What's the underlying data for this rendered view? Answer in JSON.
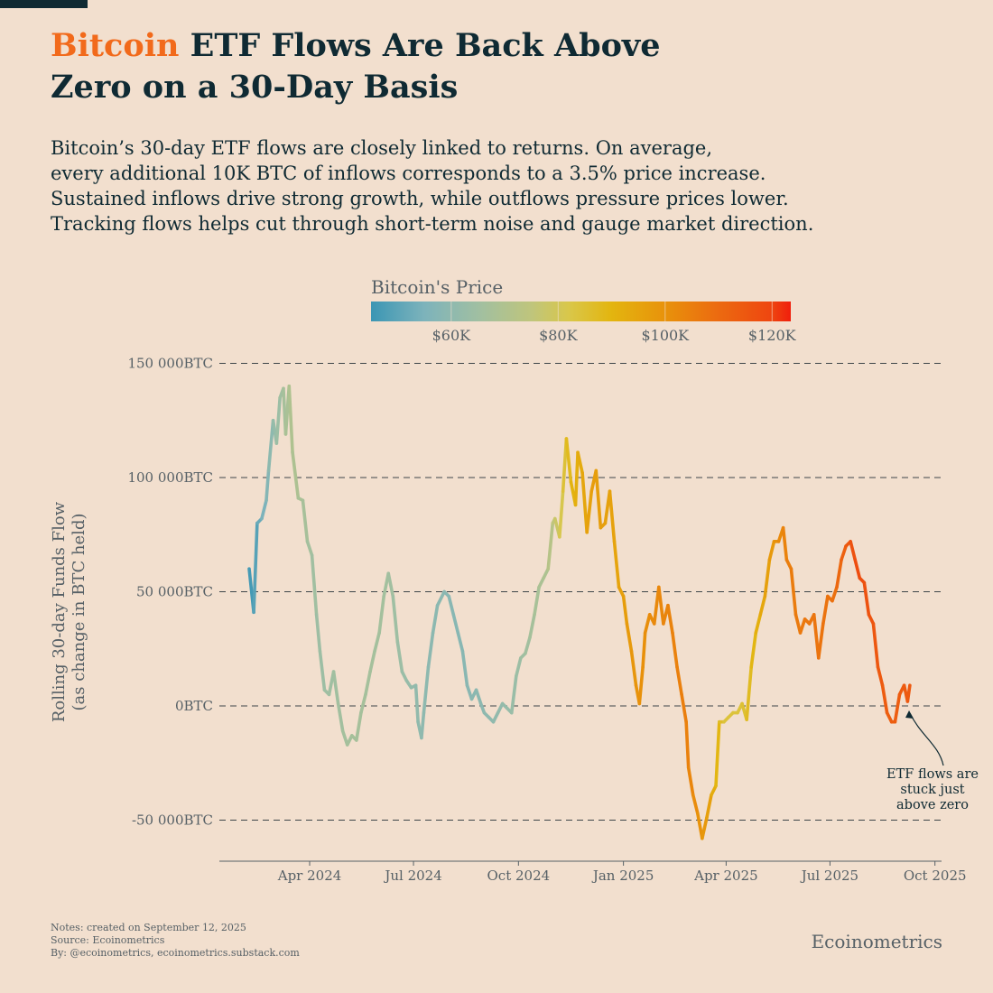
{
  "title": {
    "highlight": "Bitcoin",
    "rest_line1": " ETF Flows Are Back Above",
    "line2": "Zero on a 30-Day Basis"
  },
  "subtitle": [
    "Bitcoin’s 30-day ETF flows are closely linked to returns. On average,",
    "every additional 10K BTC of inflows corresponds to a 3.5% price increase.",
    "Sustained inflows drive strong growth, while outflows pressure prices lower.",
    "Tracking flows helps cut through short-term noise and gauge market direction."
  ],
  "colors": {
    "accent": "#f26a1b",
    "ink": "#0f2a33",
    "background": "#f2dfce"
  },
  "chart_data": {
    "type": "line",
    "title": "Bitcoin ETF Flows Are Back Above Zero on a 30-Day Basis",
    "ylabel_line1": "Rolling 30-day Funds Flow",
    "ylabel_line2": "(as change in BTC held)",
    "x_unit": "days since 2024-01-01",
    "y_unit": "thousand BTC",
    "ylim": [
      -60,
      150
    ],
    "y_ticks": [
      {
        "v": 150,
        "label": "150 000BTC"
      },
      {
        "v": 100,
        "label": "100 000BTC"
      },
      {
        "v": 50,
        "label": "50 000BTC"
      },
      {
        "v": 0,
        "label": "0BTC"
      },
      {
        "v": -50,
        "label": "-50 000BTC"
      }
    ],
    "x_ticks": [
      {
        "d": 91,
        "label": "Apr 2024"
      },
      {
        "d": 182,
        "label": "Jul 2024"
      },
      {
        "d": 274,
        "label": "Oct 2024"
      },
      {
        "d": 366,
        "label": "Jan 2025"
      },
      {
        "d": 456,
        "label": "Apr 2025"
      },
      {
        "d": 547,
        "label": "Jul 2025"
      },
      {
        "d": 639,
        "label": "Oct 2025"
      }
    ],
    "grid": "horizontal dashed",
    "x": [
      38,
      42,
      45,
      49,
      53,
      55,
      59,
      62,
      65,
      68,
      70,
      73,
      76,
      81,
      85,
      89,
      93,
      97,
      100,
      104,
      108,
      112,
      116,
      120,
      124,
      128,
      132,
      136,
      140,
      144,
      148,
      152,
      156,
      160,
      164,
      168,
      172,
      176,
      180,
      184,
      186,
      189,
      191,
      195,
      199,
      203,
      209,
      213,
      217,
      221,
      225,
      229,
      233,
      237,
      241,
      244,
      248,
      252,
      256,
      260,
      264,
      268,
      272,
      276,
      280,
      284,
      288,
      292,
      296,
      300,
      304,
      306,
      310,
      313,
      316,
      320,
      324,
      326,
      330,
      334,
      338,
      342,
      346,
      350,
      354,
      358,
      362,
      366,
      369,
      373,
      377,
      380,
      383,
      385,
      389,
      393,
      397,
      401,
      405,
      409,
      413,
      417,
      421,
      423,
      427,
      431,
      435,
      439,
      443,
      447,
      450,
      454,
      458,
      462,
      466,
      470,
      474,
      478,
      482,
      486,
      490,
      494,
      498,
      502,
      506,
      509,
      513,
      517,
      521,
      525,
      529,
      533,
      537,
      541,
      545,
      549,
      553,
      557,
      561,
      565,
      569,
      573,
      577,
      581,
      585,
      589,
      593,
      597,
      601,
      604,
      608,
      612,
      615,
      617
    ],
    "y": [
      60,
      41,
      80,
      82,
      90,
      103,
      125,
      115,
      135,
      139,
      119,
      140,
      111,
      91,
      90,
      72,
      66,
      40,
      24,
      7,
      5,
      15,
      1,
      -11,
      -17,
      -13,
      -15,
      -3,
      5,
      15,
      24,
      32,
      48,
      58,
      48,
      28,
      15,
      11,
      8,
      9,
      -7,
      -14,
      -3,
      17,
      32,
      44,
      50,
      48,
      40,
      32,
      24,
      9,
      3,
      7,
      1,
      -3,
      -5,
      -7,
      -3,
      1,
      -1,
      -3,
      13,
      21,
      23,
      30,
      40,
      52,
      56,
      60,
      80,
      82,
      74,
      94,
      117,
      98,
      88,
      111,
      102,
      76,
      94,
      103,
      78,
      80,
      94,
      72,
      52,
      48,
      36,
      24,
      9,
      1,
      17,
      32,
      40,
      36,
      52,
      36,
      44,
      32,
      17,
      5,
      -7,
      -27,
      -39,
      -47,
      -58,
      -49,
      -39,
      -35,
      -7,
      -7,
      -5,
      -3,
      -3,
      1,
      -6,
      17,
      32,
      40,
      48,
      64,
      72,
      72,
      78,
      64,
      60,
      40,
      32,
      38,
      36,
      40,
      21,
      36,
      48,
      46,
      52,
      64,
      70,
      72,
      64,
      56,
      54,
      40,
      36,
      17,
      9,
      -3,
      -7,
      -7,
      5,
      9,
      2,
      9
    ],
    "price_k_usd": {
      "x": [
        38,
        60,
        75,
        100,
        130,
        160,
        190,
        220,
        250,
        270,
        300,
        320,
        340,
        360,
        380,
        400,
        420,
        440,
        455,
        470,
        490,
        510,
        530,
        550,
        570,
        600,
        620,
        640,
        655
      ],
      "y": [
        45,
        62,
        70,
        64,
        67,
        66,
        60,
        58,
        60,
        63,
        70,
        90,
        97,
        95,
        100,
        103,
        105,
        97,
        84,
        84,
        95,
        105,
        107,
        108,
        118,
        113,
        115,
        110,
        115
      ]
    },
    "colorbar": {
      "title": "Bitcoin's Price",
      "range": [
        45,
        123.5
      ],
      "ticks": [
        {
          "v": 60,
          "label": "$60K"
        },
        {
          "v": 80,
          "label": "$80K"
        },
        {
          "v": 100,
          "label": "$100K"
        },
        {
          "v": 120,
          "label": "$120K"
        }
      ],
      "stops": [
        {
          "v": 45,
          "c": "#3b96b4"
        },
        {
          "v": 55,
          "c": "#7db3bb"
        },
        {
          "v": 65,
          "c": "#a0bfa2"
        },
        {
          "v": 75,
          "c": "#bfc57c"
        },
        {
          "v": 82,
          "c": "#d9c74a"
        },
        {
          "v": 90,
          "c": "#e3b50f"
        },
        {
          "v": 100,
          "c": "#e8920b"
        },
        {
          "v": 110,
          "c": "#ec6a10"
        },
        {
          "v": 120,
          "c": "#ee4510"
        },
        {
          "v": 123.5,
          "c": "#f01e0c"
        }
      ]
    },
    "annotation": [
      "ETF flows are",
      "stuck just",
      "above zero"
    ]
  },
  "notes": [
    "Notes: created on September 12, 2025",
    "Source: Ecoinometrics",
    "By: @ecoinometrics, ecoinometrics.substack.com"
  ],
  "brand": "Ecoinometrics"
}
